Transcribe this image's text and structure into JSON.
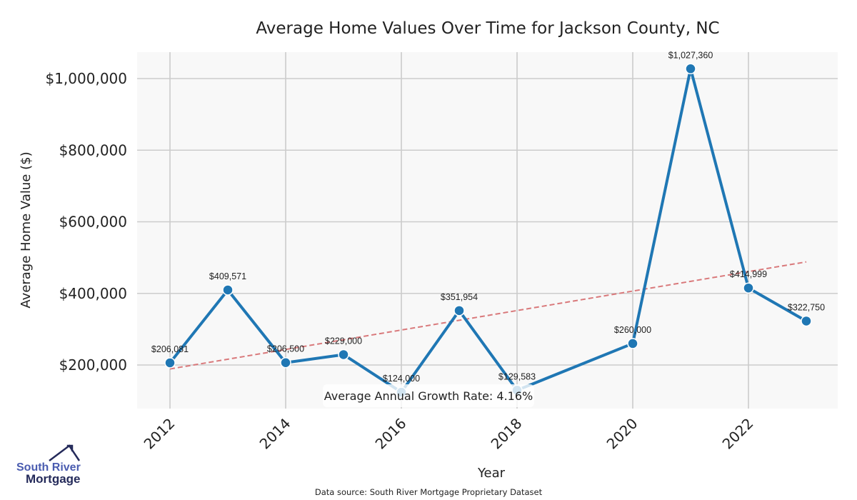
{
  "chart_data": {
    "type": "line",
    "title": "Average Home Values Over Time for Jackson County, NC",
    "xlabel": "Year",
    "ylabel": "Average Home Value ($)",
    "x": [
      2012,
      2013,
      2014,
      2015,
      2016,
      2017,
      2018,
      2020,
      2021,
      2022,
      2023
    ],
    "values": [
      206081,
      409571,
      206500,
      229000,
      124000,
      351954,
      129583,
      260000,
      1027360,
      414999,
      322750
    ],
    "data_labels": [
      "$206,081",
      "$409,571",
      "$206,500",
      "$229,000",
      "$124,000",
      "$351,954",
      "$129,583",
      "$260,000",
      "$1,027,360",
      "$414,999",
      "$322,750"
    ],
    "xlim": [
      2011.4,
      2024.5
    ],
    "ylim": [
      78000,
      1076000
    ],
    "xticks": [
      2012,
      2014,
      2016,
      2018,
      2020,
      2022
    ],
    "xtick_labels": [
      "2012",
      "2014",
      "2016",
      "2018",
      "2020",
      "2022"
    ],
    "yticks": [
      200000,
      400000,
      600000,
      800000,
      1000000
    ],
    "ytick_labels": [
      "$200,000",
      "$400,000",
      "$600,000",
      "$800,000",
      "$1,000,000"
    ],
    "trend": {
      "x": [
        2012,
        2023
      ],
      "y": [
        189000,
        488000
      ]
    },
    "annotation": "Average Annual Growth Rate: 4.16%",
    "grid": true,
    "colors": {
      "line": "#1f77b4",
      "trend": "#d9797b",
      "plot_bg": "#f8f8f8",
      "grid": "#cccccc"
    }
  },
  "footer": {
    "source": "Data source: South River Mortgage Proprietary Dataset",
    "logo_line1": "South River",
    "logo_line2": "Mortgage"
  }
}
